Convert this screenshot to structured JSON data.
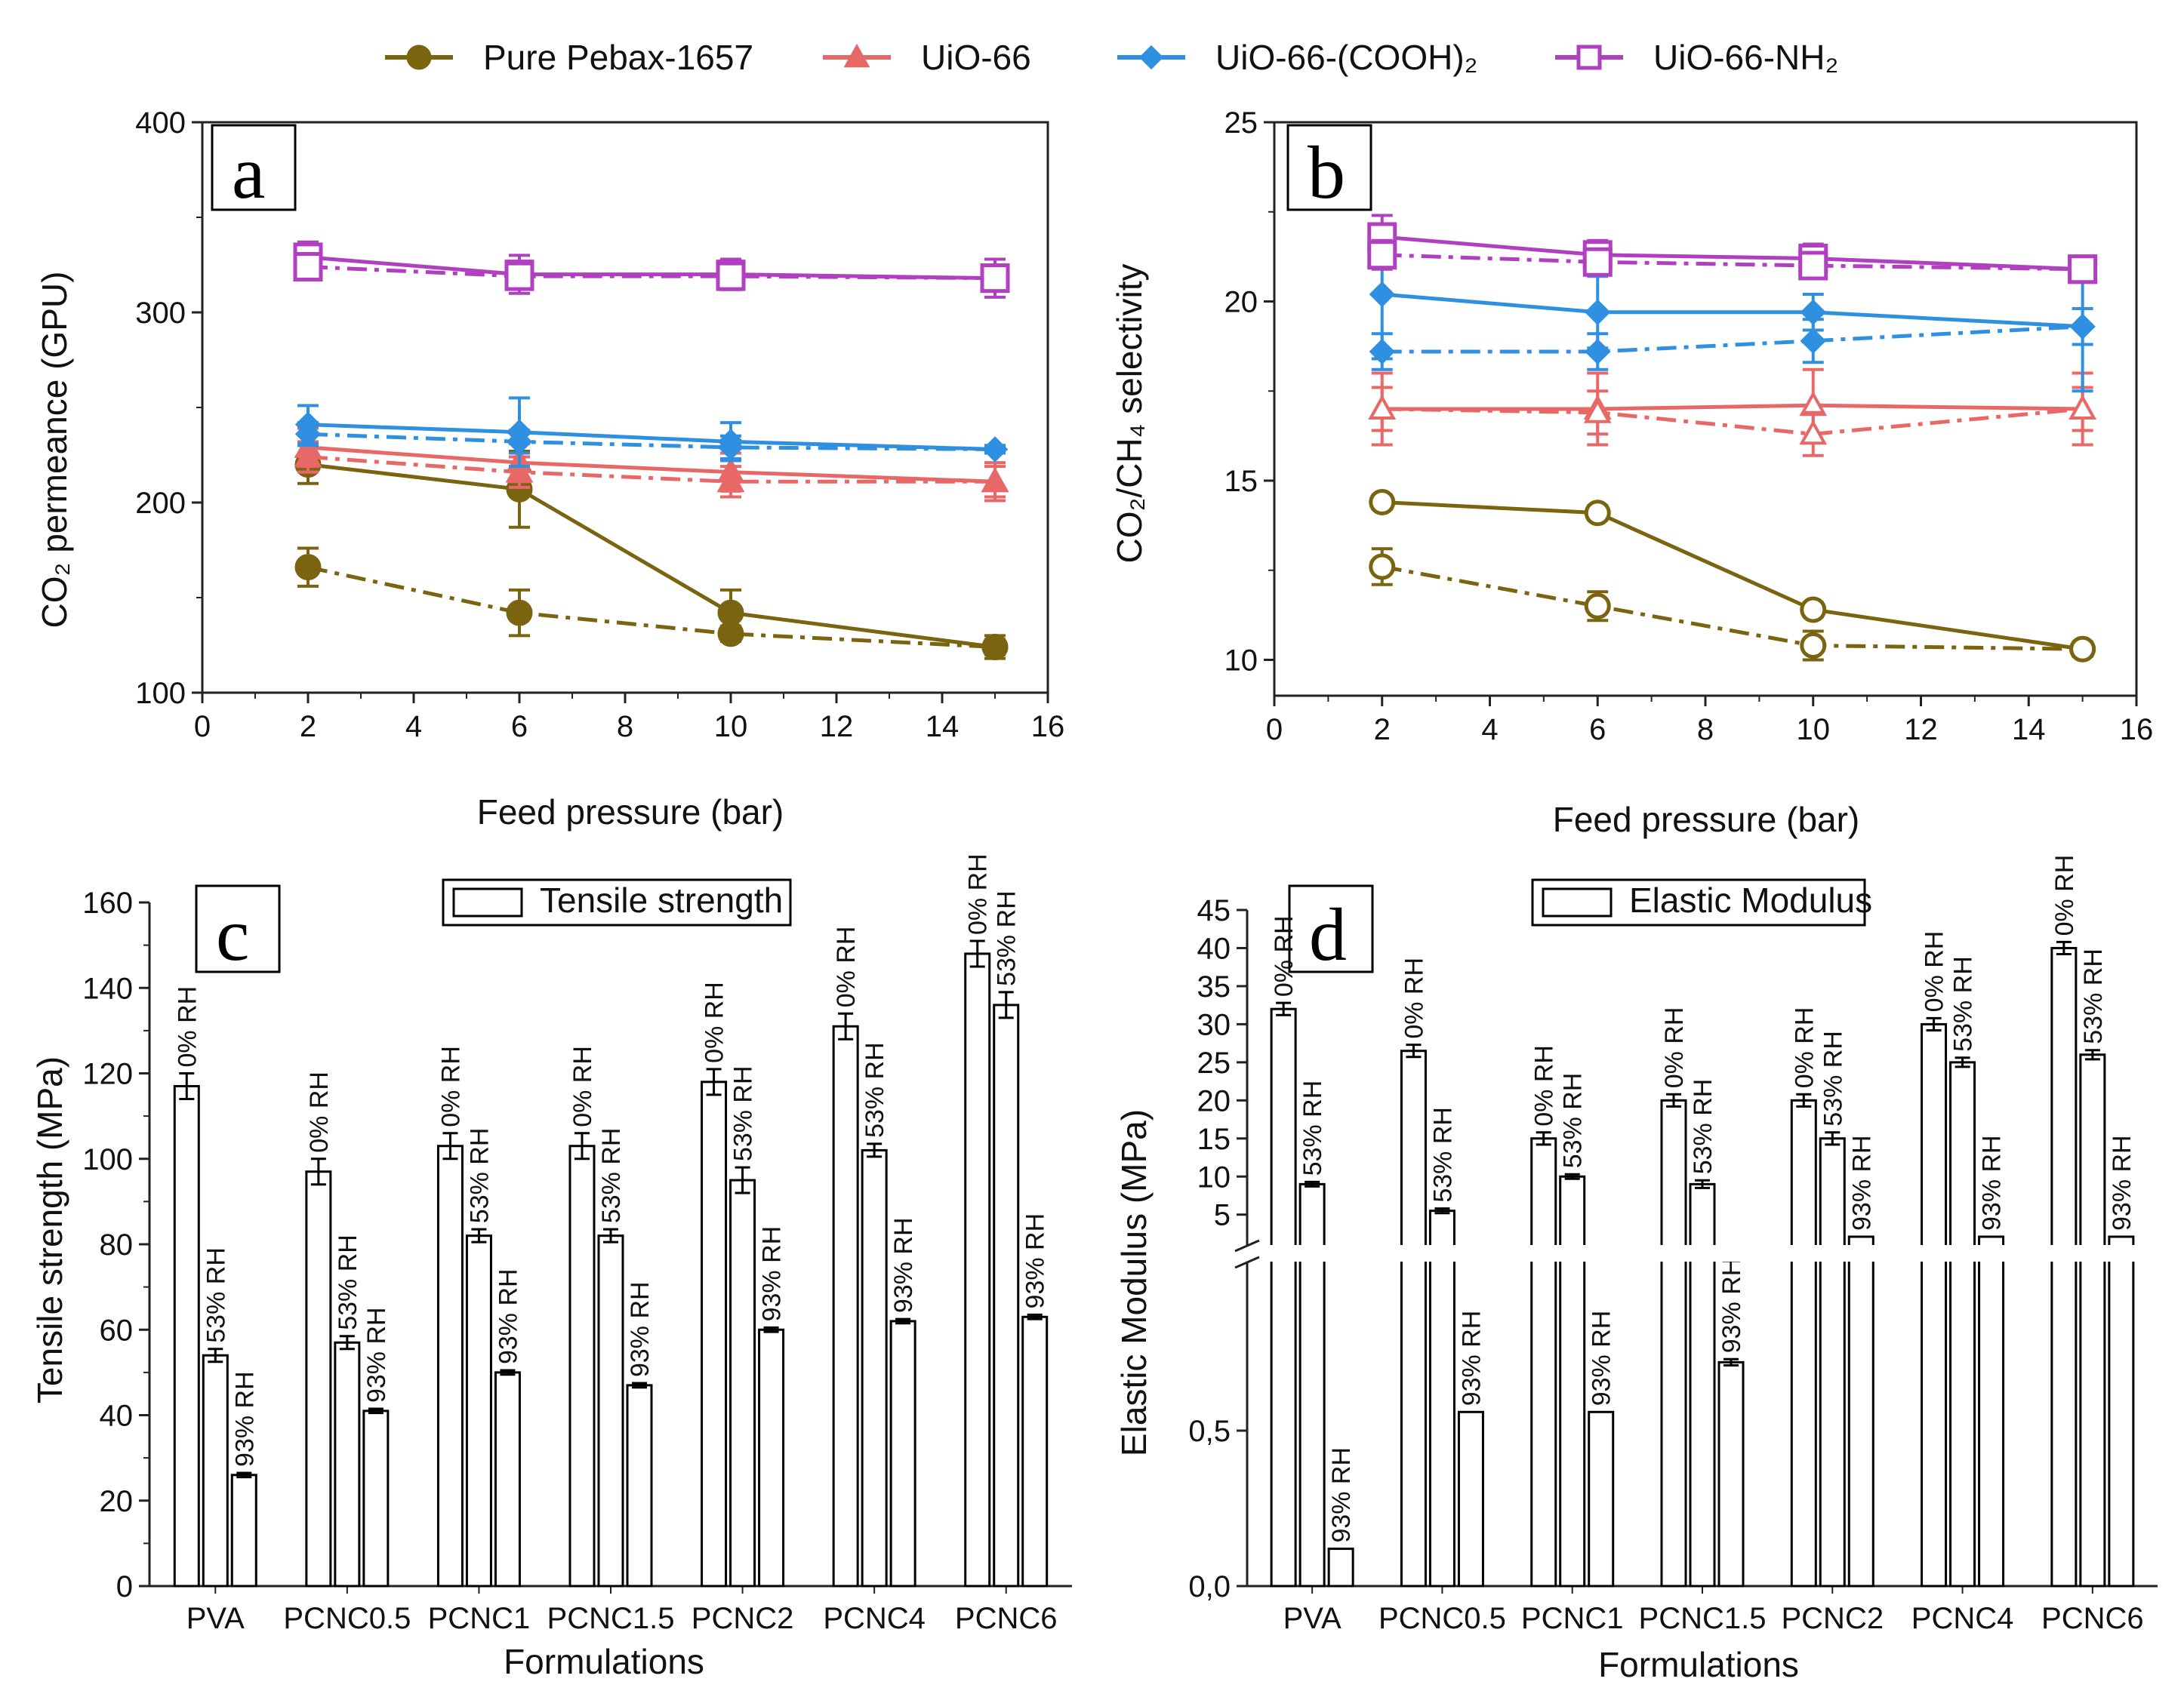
{
  "legend_top": [
    {
      "name": "Pure Pebax-1657",
      "color": "#7a6410",
      "marker": "circle"
    },
    {
      "name": "UiO-66",
      "color": "#e86868",
      "marker": "triangle"
    },
    {
      "name": "UiO-66-(COOH)₂",
      "color": "#2f8fe0",
      "marker": "diamond"
    },
    {
      "name": "UiO-66-NH₂",
      "color": "#b040c0",
      "marker": "square"
    }
  ],
  "colors": {
    "pebax": "#7a6410",
    "uio66": "#e86868",
    "cooh": "#2f8fe0",
    "nh2": "#b040c0",
    "bar": "#000000"
  },
  "chart_data": [
    {
      "id": "a",
      "type": "line",
      "panel_label": "a",
      "xlabel": "Feed pressure (bar)",
      "ylabel": "CO₂ permeance (GPU)",
      "xlim": [
        0,
        16
      ],
      "ylim": [
        100,
        400
      ],
      "xticks": [
        0,
        2,
        4,
        6,
        8,
        10,
        12,
        14,
        16
      ],
      "yticks": [
        100,
        200,
        300,
        400
      ],
      "x": [
        2,
        6,
        10,
        15
      ],
      "series": [
        {
          "name": "Pure Pebax-1657",
          "style": "solid",
          "marker": "circle",
          "fill": true,
          "values": [
            220,
            207,
            142,
            124
          ],
          "err": [
            10,
            20,
            12,
            6
          ]
        },
        {
          "name": "Pure Pebax-1657",
          "style": "dashdot",
          "marker": "circle",
          "fill": true,
          "values": [
            166,
            142,
            131,
            124
          ],
          "err": [
            10,
            12,
            4,
            4
          ]
        },
        {
          "name": "UiO-66",
          "style": "solid",
          "marker": "triangle",
          "fill": true,
          "values": [
            229,
            221,
            216,
            211
          ],
          "err": [
            10,
            10,
            10,
            10
          ]
        },
        {
          "name": "UiO-66",
          "style": "dashdot",
          "marker": "triangle",
          "fill": true,
          "values": [
            224,
            216,
            211,
            211
          ],
          "err": [
            8,
            8,
            8,
            8
          ]
        },
        {
          "name": "UiO-66-(COOH)₂",
          "style": "solid",
          "marker": "diamond",
          "fill": true,
          "values": [
            241,
            237,
            232,
            228
          ],
          "err": [
            10,
            18,
            10,
            2
          ]
        },
        {
          "name": "UiO-66-(COOH)₂",
          "style": "dashdot",
          "marker": "diamond",
          "fill": true,
          "values": [
            236,
            232,
            229,
            228
          ],
          "err": [
            6,
            6,
            6,
            2
          ]
        },
        {
          "name": "UiO-66-NH₂",
          "style": "solid",
          "marker": "square",
          "fill": false,
          "values": [
            329,
            320,
            320,
            318
          ],
          "err": [
            8,
            10,
            8,
            10
          ]
        },
        {
          "name": "UiO-66-NH₂",
          "style": "dashdot",
          "marker": "square",
          "fill": false,
          "values": [
            324,
            319,
            319,
            318
          ],
          "err": [
            6,
            6,
            6,
            6
          ]
        }
      ]
    },
    {
      "id": "b",
      "type": "line",
      "panel_label": "b",
      "xlabel": "Feed pressure (bar)",
      "ylabel": "CO₂/CH₄ selectivity",
      "xlim": [
        0,
        16
      ],
      "ylim": [
        9,
        25
      ],
      "xticks": [
        0,
        2,
        4,
        6,
        8,
        10,
        12,
        14,
        16
      ],
      "yticks": [
        10,
        15,
        20,
        25
      ],
      "x": [
        2,
        6,
        10,
        15
      ],
      "series": [
        {
          "name": "Pure Pebax-1657",
          "style": "solid",
          "marker": "circle",
          "fill": false,
          "values": [
            14.4,
            14.1,
            11.4,
            10.3
          ],
          "err": [
            0.2,
            0.2,
            0.2,
            0.2
          ]
        },
        {
          "name": "Pure Pebax-1657",
          "style": "dashdot",
          "marker": "circle",
          "fill": false,
          "values": [
            12.6,
            11.5,
            10.4,
            10.3
          ],
          "err": [
            0.5,
            0.4,
            0.4,
            0.2
          ]
        },
        {
          "name": "UiO-66",
          "style": "solid",
          "marker": "triangle",
          "fill": false,
          "values": [
            17.0,
            17.0,
            17.1,
            17.0
          ],
          "err": [
            1.0,
            1.0,
            1.0,
            1.0
          ]
        },
        {
          "name": "UiO-66",
          "style": "dashdot",
          "marker": "triangle",
          "fill": false,
          "values": [
            17.0,
            16.9,
            16.3,
            17.0
          ],
          "err": [
            0.6,
            0.6,
            0.6,
            0.6
          ]
        },
        {
          "name": "UiO-66-(COOH)₂",
          "style": "solid",
          "marker": "diamond",
          "fill": true,
          "values": [
            20.2,
            19.7,
            19.7,
            19.3
          ],
          "err": [
            1.8,
            1.0,
            0.5,
            1.8
          ]
        },
        {
          "name": "UiO-66-(COOH)₂",
          "style": "dashdot",
          "marker": "diamond",
          "fill": true,
          "values": [
            18.6,
            18.6,
            18.9,
            19.3
          ],
          "err": [
            0.5,
            0.5,
            0.6,
            0.5
          ]
        },
        {
          "name": "UiO-66-NH₂",
          "style": "solid",
          "marker": "square",
          "fill": false,
          "values": [
            21.8,
            21.3,
            21.2,
            20.9
          ],
          "err": [
            0.6,
            0.4,
            0.4,
            0.3
          ]
        },
        {
          "name": "UiO-66-NH₂",
          "style": "dashdot",
          "marker": "square",
          "fill": false,
          "values": [
            21.3,
            21.1,
            21.0,
            20.9
          ],
          "err": [
            0.4,
            0.3,
            0.3,
            0.3
          ]
        }
      ]
    },
    {
      "id": "c",
      "type": "bar",
      "panel_label": "c",
      "legend": "Tensile strength",
      "xlabel": "Formulations",
      "ylabel": "Tensile strength (MPa)",
      "ylim": [
        0,
        160
      ],
      "yticks": [
        0,
        20,
        40,
        60,
        80,
        100,
        120,
        140,
        160
      ],
      "categories": [
        "PVA",
        "PCNC0.5",
        "PCNC1",
        "PCNC1.5",
        "PCNC2",
        "PCNC4",
        "PCNC6"
      ],
      "bar_labels": [
        "0% RH",
        "53% RH",
        "93% RH"
      ],
      "series": [
        {
          "name": "0% RH",
          "values": [
            117,
            97,
            103,
            103,
            118,
            131,
            148
          ],
          "err": [
            3,
            3,
            3,
            3,
            3,
            3,
            3
          ]
        },
        {
          "name": "53% RH",
          "values": [
            54,
            57,
            82,
            82,
            95,
            102,
            136
          ],
          "err": [
            1.5,
            1.5,
            1.5,
            1.5,
            3,
            1.5,
            3
          ]
        },
        {
          "name": "93% RH",
          "values": [
            26,
            41,
            50,
            47,
            60,
            62,
            63
          ],
          "err": [
            0.5,
            0.5,
            0.5,
            0.5,
            0.5,
            0.5,
            0.5
          ]
        }
      ]
    },
    {
      "id": "d",
      "type": "bar",
      "panel_label": "d",
      "legend": "Elastic Modulus",
      "xlabel": "Formulations",
      "ylabel": "Elastic Modulus (MPa)",
      "broken_axis": true,
      "ylim_lower": [
        0,
        1.0
      ],
      "ylim_upper": [
        2,
        45
      ],
      "yticks_lower": [
        "0,0",
        "0,5"
      ],
      "yticks_upper": [
        5,
        10,
        15,
        20,
        25,
        30,
        35,
        40,
        45
      ],
      "categories": [
        "PVA",
        "PCNC0.5",
        "PCNC1",
        "PCNC1.5",
        "PCNC2",
        "PCNC4",
        "PCNC6"
      ],
      "bar_labels": [
        "0% RH",
        "53% RH",
        "93% RH"
      ],
      "series": [
        {
          "name": "0% RH",
          "values": [
            32,
            26.5,
            15,
            20,
            20,
            30,
            40
          ],
          "err": [
            0.8,
            0.8,
            0.8,
            0.8,
            0.8,
            0.8,
            0.8
          ]
        },
        {
          "name": "53% RH",
          "values": [
            9,
            5.5,
            10,
            9,
            15,
            25,
            26
          ],
          "err": [
            0.3,
            0.3,
            0.3,
            0.5,
            0.8,
            0.6,
            0.6
          ]
        },
        {
          "name": "93% RH",
          "values": [
            0.12,
            0.56,
            0.56,
            0.72,
            2.1,
            2.1,
            2.1
          ],
          "err": [
            0,
            0,
            0,
            0.01,
            0,
            0,
            0
          ]
        }
      ]
    }
  ]
}
